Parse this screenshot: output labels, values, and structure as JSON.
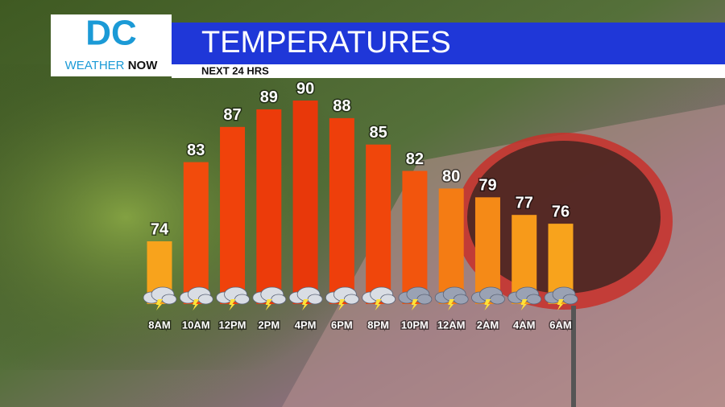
{
  "logo": {
    "letters": "DC",
    "word1": "WEATHER",
    "word2": "NOW"
  },
  "chart_data": {
    "type": "bar",
    "title": "TEMPERATURES",
    "subtitle": "NEXT 24 HRS",
    "categories": [
      "8AM",
      "10AM",
      "12PM",
      "2PM",
      "4PM",
      "6PM",
      "8PM",
      "10PM",
      "12AM",
      "2AM",
      "4AM",
      "6AM"
    ],
    "values": [
      74,
      83,
      87,
      89,
      90,
      88,
      85,
      82,
      80,
      79,
      77,
      76
    ],
    "colors": [
      "#f8a31c",
      "#f24b0c",
      "#f0420b",
      "#ec3b0a",
      "#e8380a",
      "#ee3f0b",
      "#f0460b",
      "#f2550d",
      "#f47c14",
      "#f58a17",
      "#f79a1a",
      "#f8a31c"
    ]
  }
}
